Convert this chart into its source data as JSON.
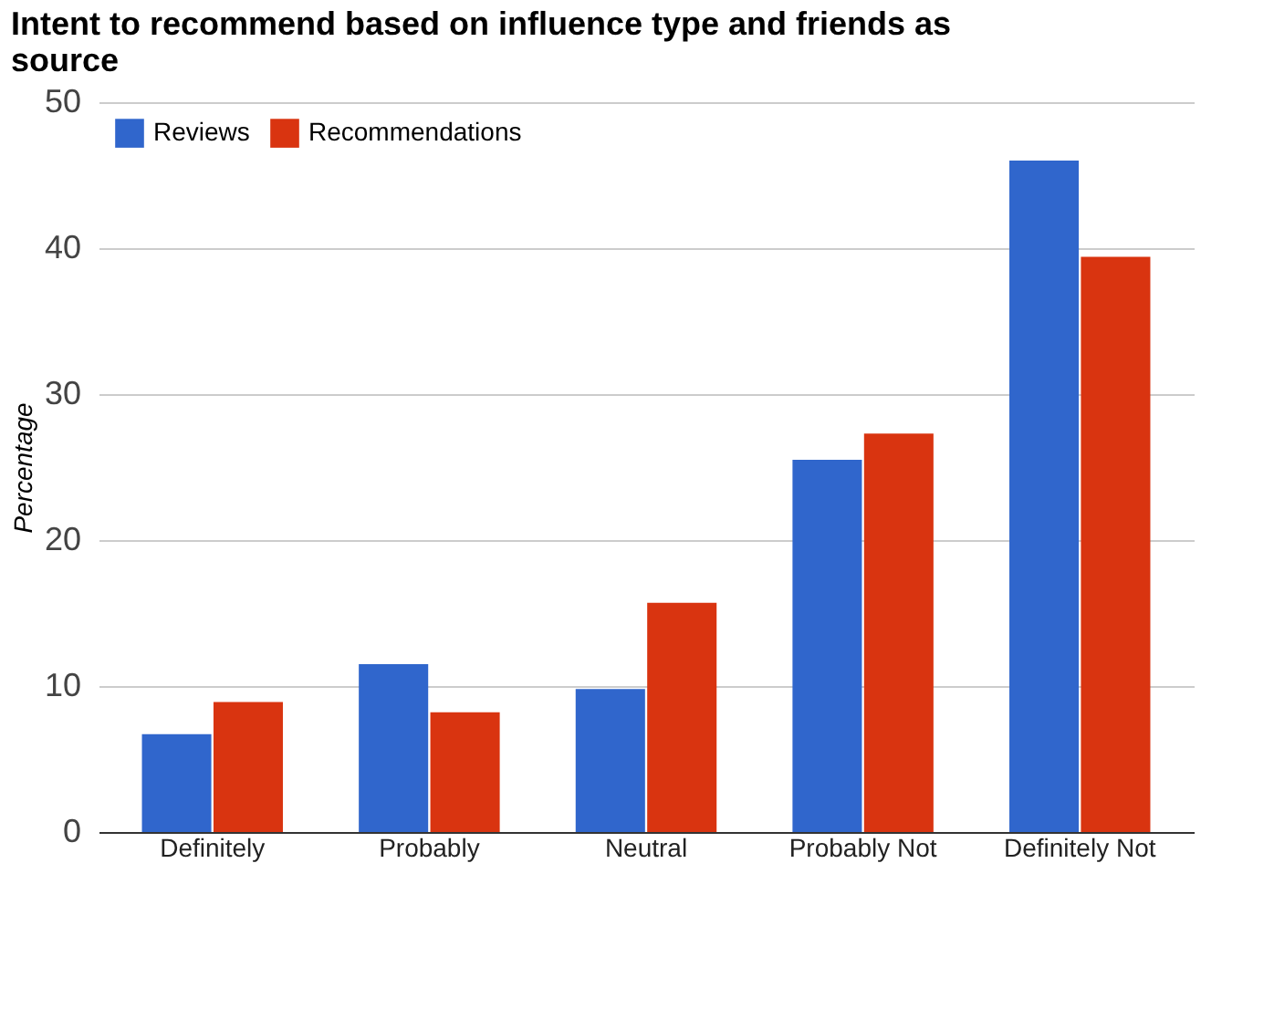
{
  "chart_data": {
    "type": "bar",
    "title": "Intent to recommend based on influence type and friends as source",
    "ylabel": "Percentage",
    "categories": [
      "Definitely",
      "Probably",
      "Neutral",
      "Probably Not",
      "Definitely Not"
    ],
    "series": [
      {
        "name": "Reviews",
        "color": "#3066cc",
        "values": [
          6.7,
          11.5,
          9.8,
          25.5,
          46.0
        ]
      },
      {
        "name": "Recommendations",
        "color": "#d93410",
        "values": [
          8.9,
          8.2,
          15.7,
          27.3,
          39.4
        ]
      }
    ],
    "ylim": [
      0,
      50
    ],
    "yticks": [
      0,
      10,
      20,
      30,
      40,
      50
    ],
    "grid": "y",
    "legend": "top left"
  }
}
